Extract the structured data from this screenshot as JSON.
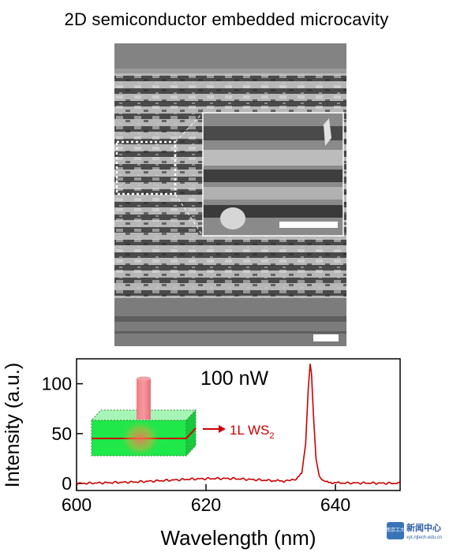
{
  "figure_title": "2D semiconductor embedded microcavity",
  "annotations": {
    "power_label": "100 nW",
    "layer_label": "1L WS",
    "layer_label_subscript": "2"
  },
  "logo": {
    "chinese_text": "新闻中心",
    "url_text": "xyt.njtech.edu.cn",
    "crest_text": "南京工大"
  },
  "colors": {
    "spectrum": "#cc0000",
    "accent": "#cc0000",
    "slab": "#1ee84a"
  },
  "chart_data": {
    "type": "line",
    "title": "",
    "xlabel": "Wavelength (nm)",
    "ylabel": "Intensity (a.u.)",
    "xlim": [
      600,
      650
    ],
    "ylim": [
      -7,
      125
    ],
    "xticks": [
      600,
      620,
      640
    ],
    "yticks": [
      0,
      50,
      100
    ],
    "grid": false,
    "series": [
      {
        "x": [
          600,
          603,
          606,
          609,
          612,
          615,
          618,
          621,
          624,
          627,
          630,
          632,
          633,
          634,
          634.8,
          635.4,
          635.8,
          636.1,
          636.3,
          636.6,
          637.0,
          637.5,
          638.2,
          639,
          641,
          644,
          647,
          650
        ],
        "values": [
          0,
          0.5,
          1,
          1.5,
          2.5,
          3.5,
          4.5,
          5,
          5,
          4,
          3,
          2.5,
          3,
          5,
          10,
          40,
          95,
          120,
          110,
          70,
          25,
          7,
          2,
          1,
          0.5,
          0.5,
          0.3,
          0.2
        ]
      }
    ]
  }
}
